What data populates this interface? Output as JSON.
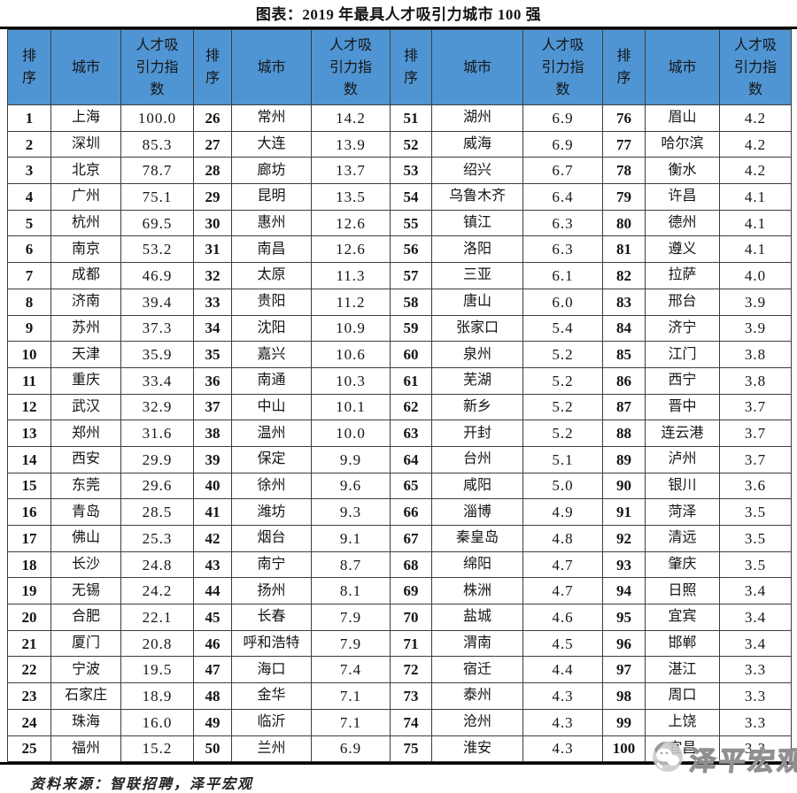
{
  "chart_data": {
    "type": "table",
    "title": "图表：2019 年最具人才吸引力城市 100 强",
    "column_headers": {
      "rank": "排序",
      "city": "城市",
      "index": "人才吸引力指数"
    },
    "header_groups": 4,
    "rows_per_group": 25,
    "source": "资料来源：智联招聘，泽平宏观",
    "entries": [
      {
        "rank": 1,
        "city": "上海",
        "index": "100.0"
      },
      {
        "rank": 2,
        "city": "深圳",
        "index": "85.3"
      },
      {
        "rank": 3,
        "city": "北京",
        "index": "78.7"
      },
      {
        "rank": 4,
        "city": "广州",
        "index": "75.1"
      },
      {
        "rank": 5,
        "city": "杭州",
        "index": "69.5"
      },
      {
        "rank": 6,
        "city": "南京",
        "index": "53.2"
      },
      {
        "rank": 7,
        "city": "成都",
        "index": "46.9"
      },
      {
        "rank": 8,
        "city": "济南",
        "index": "39.4"
      },
      {
        "rank": 9,
        "city": "苏州",
        "index": "37.3"
      },
      {
        "rank": 10,
        "city": "天津",
        "index": "35.9"
      },
      {
        "rank": 11,
        "city": "重庆",
        "index": "33.4"
      },
      {
        "rank": 12,
        "city": "武汉",
        "index": "32.9"
      },
      {
        "rank": 13,
        "city": "郑州",
        "index": "31.6"
      },
      {
        "rank": 14,
        "city": "西安",
        "index": "29.9"
      },
      {
        "rank": 15,
        "city": "东莞",
        "index": "29.6"
      },
      {
        "rank": 16,
        "city": "青岛",
        "index": "28.5"
      },
      {
        "rank": 17,
        "city": "佛山",
        "index": "25.3"
      },
      {
        "rank": 18,
        "city": "长沙",
        "index": "24.8"
      },
      {
        "rank": 19,
        "city": "无锡",
        "index": "24.2"
      },
      {
        "rank": 20,
        "city": "合肥",
        "index": "22.1"
      },
      {
        "rank": 21,
        "city": "厦门",
        "index": "20.8"
      },
      {
        "rank": 22,
        "city": "宁波",
        "index": "19.5"
      },
      {
        "rank": 23,
        "city": "石家庄",
        "index": "18.9"
      },
      {
        "rank": 24,
        "city": "珠海",
        "index": "16.0"
      },
      {
        "rank": 25,
        "city": "福州",
        "index": "15.2"
      },
      {
        "rank": 26,
        "city": "常州",
        "index": "14.2"
      },
      {
        "rank": 27,
        "city": "大连",
        "index": "13.9"
      },
      {
        "rank": 28,
        "city": "廊坊",
        "index": "13.7"
      },
      {
        "rank": 29,
        "city": "昆明",
        "index": "13.5"
      },
      {
        "rank": 30,
        "city": "惠州",
        "index": "12.6"
      },
      {
        "rank": 31,
        "city": "南昌",
        "index": "12.6"
      },
      {
        "rank": 32,
        "city": "太原",
        "index": "11.3"
      },
      {
        "rank": 33,
        "city": "贵阳",
        "index": "11.2"
      },
      {
        "rank": 34,
        "city": "沈阳",
        "index": "10.9"
      },
      {
        "rank": 35,
        "city": "嘉兴",
        "index": "10.6"
      },
      {
        "rank": 36,
        "city": "南通",
        "index": "10.3"
      },
      {
        "rank": 37,
        "city": "中山",
        "index": "10.1"
      },
      {
        "rank": 38,
        "city": "温州",
        "index": "10.0"
      },
      {
        "rank": 39,
        "city": "保定",
        "index": "9.9"
      },
      {
        "rank": 40,
        "city": "徐州",
        "index": "9.6"
      },
      {
        "rank": 41,
        "city": "潍坊",
        "index": "9.3"
      },
      {
        "rank": 42,
        "city": "烟台",
        "index": "9.1"
      },
      {
        "rank": 43,
        "city": "南宁",
        "index": "8.7"
      },
      {
        "rank": 44,
        "city": "扬州",
        "index": "8.1"
      },
      {
        "rank": 45,
        "city": "长春",
        "index": "7.9"
      },
      {
        "rank": 46,
        "city": "呼和浩特",
        "index": "7.9"
      },
      {
        "rank": 47,
        "city": "海口",
        "index": "7.4"
      },
      {
        "rank": 48,
        "city": "金华",
        "index": "7.1"
      },
      {
        "rank": 49,
        "city": "临沂",
        "index": "7.1"
      },
      {
        "rank": 50,
        "city": "兰州",
        "index": "6.9"
      },
      {
        "rank": 51,
        "city": "湖州",
        "index": "6.9"
      },
      {
        "rank": 52,
        "city": "威海",
        "index": "6.9"
      },
      {
        "rank": 53,
        "city": "绍兴",
        "index": "6.7"
      },
      {
        "rank": 54,
        "city": "乌鲁木齐",
        "index": "6.4"
      },
      {
        "rank": 55,
        "city": "镇江",
        "index": "6.3"
      },
      {
        "rank": 56,
        "city": "洛阳",
        "index": "6.3"
      },
      {
        "rank": 57,
        "city": "三亚",
        "index": "6.1"
      },
      {
        "rank": 58,
        "city": "唐山",
        "index": "6.0"
      },
      {
        "rank": 59,
        "city": "张家口",
        "index": "5.4"
      },
      {
        "rank": 60,
        "city": "泉州",
        "index": "5.2"
      },
      {
        "rank": 61,
        "city": "芜湖",
        "index": "5.2"
      },
      {
        "rank": 62,
        "city": "新乡",
        "index": "5.2"
      },
      {
        "rank": 63,
        "city": "开封",
        "index": "5.2"
      },
      {
        "rank": 64,
        "city": "台州",
        "index": "5.1"
      },
      {
        "rank": 65,
        "city": "咸阳",
        "index": "5.0"
      },
      {
        "rank": 66,
        "city": "淄博",
        "index": "4.9"
      },
      {
        "rank": 67,
        "city": "秦皇岛",
        "index": "4.8"
      },
      {
        "rank": 68,
        "city": "绵阳",
        "index": "4.7"
      },
      {
        "rank": 69,
        "city": "株洲",
        "index": "4.7"
      },
      {
        "rank": 70,
        "city": "盐城",
        "index": "4.6"
      },
      {
        "rank": 71,
        "city": "渭南",
        "index": "4.5"
      },
      {
        "rank": 72,
        "city": "宿迁",
        "index": "4.4"
      },
      {
        "rank": 73,
        "city": "泰州",
        "index": "4.3"
      },
      {
        "rank": 74,
        "city": "沧州",
        "index": "4.3"
      },
      {
        "rank": 75,
        "city": "淮安",
        "index": "4.3"
      },
      {
        "rank": 76,
        "city": "眉山",
        "index": "4.2"
      },
      {
        "rank": 77,
        "city": "哈尔滨",
        "index": "4.2"
      },
      {
        "rank": 78,
        "city": "衡水",
        "index": "4.2"
      },
      {
        "rank": 79,
        "city": "许昌",
        "index": "4.1"
      },
      {
        "rank": 80,
        "city": "德州",
        "index": "4.1"
      },
      {
        "rank": 81,
        "city": "遵义",
        "index": "4.1"
      },
      {
        "rank": 82,
        "city": "拉萨",
        "index": "4.0"
      },
      {
        "rank": 83,
        "city": "邢台",
        "index": "3.9"
      },
      {
        "rank": 84,
        "city": "济宁",
        "index": "3.9"
      },
      {
        "rank": 85,
        "city": "江门",
        "index": "3.8"
      },
      {
        "rank": 86,
        "city": "西宁",
        "index": "3.8"
      },
      {
        "rank": 87,
        "city": "晋中",
        "index": "3.7"
      },
      {
        "rank": 88,
        "city": "连云港",
        "index": "3.7"
      },
      {
        "rank": 89,
        "city": "泸州",
        "index": "3.7"
      },
      {
        "rank": 90,
        "city": "银川",
        "index": "3.6"
      },
      {
        "rank": 91,
        "city": "菏泽",
        "index": "3.5"
      },
      {
        "rank": 92,
        "city": "清远",
        "index": "3.5"
      },
      {
        "rank": 93,
        "city": "肇庆",
        "index": "3.5"
      },
      {
        "rank": 94,
        "city": "日照",
        "index": "3.4"
      },
      {
        "rank": 95,
        "city": "宜宾",
        "index": "3.4"
      },
      {
        "rank": 96,
        "city": "邯郸",
        "index": "3.4"
      },
      {
        "rank": 97,
        "city": "湛江",
        "index": "3.3"
      },
      {
        "rank": 98,
        "city": "周口",
        "index": "3.3"
      },
      {
        "rank": 99,
        "city": "上饶",
        "index": "3.3"
      },
      {
        "rank": 100,
        "city": "宜昌",
        "index": "3.2"
      }
    ]
  },
  "watermark": {
    "brand": "泽平宏观",
    "logo": "wechat-account-logo"
  },
  "colors": {
    "header_bg": "#5095d3",
    "grid_border": "#3d3d3d",
    "thick_rule": "#000000",
    "watermark_gray": "#8f8f8f"
  }
}
